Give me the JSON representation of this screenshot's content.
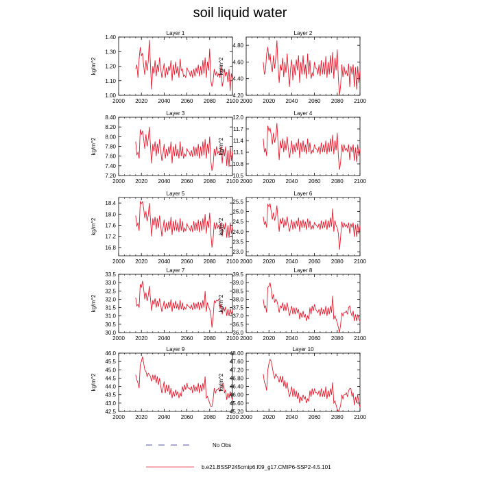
{
  "title": "soil liquid water",
  "legend": {
    "obs_label": "No Obs",
    "model_label": "b.e21.BSSP245cmip6.f09_g17.CMIP6-SSP2-4.5.101",
    "line_color": "#e8192c",
    "obs_color": "#1a1a8c"
  },
  "chart_data": [
    {
      "type": "line",
      "title": "Layer 1",
      "ylabel": "kg/m^2",
      "xlim": [
        2000,
        2100
      ],
      "ylim": [
        1.0,
        1.4
      ],
      "xticks": [
        "2000",
        "2020",
        "2040",
        "2060",
        "2080",
        "2100"
      ],
      "yticks": [
        "1.00",
        "1.10",
        "1.20",
        "1.30",
        "1.40"
      ],
      "x_start": 2015,
      "x_end": 2100,
      "values": [
        1.18,
        1.21,
        1.12,
        1.25,
        1.33,
        1.27,
        1.29,
        1.2,
        1.14,
        1.24,
        1.17,
        1.23,
        1.38,
        1.2,
        1.04,
        1.2,
        1.15,
        1.24,
        1.13,
        1.21,
        1.16,
        1.26,
        1.18,
        1.12,
        1.17,
        1.22,
        1.12,
        1.19,
        1.14,
        1.2,
        1.17,
        1.24,
        1.1,
        1.21,
        1.14,
        1.23,
        1.15,
        1.2,
        1.12,
        1.25,
        1.17,
        1.18,
        1.13,
        1.14,
        1.12,
        1.19,
        1.17,
        1.16,
        1.13,
        1.17,
        1.12,
        1.18,
        1.13,
        1.19,
        1.15,
        1.21,
        1.13,
        1.2,
        1.14,
        1.24,
        1.15,
        1.26,
        1.12,
        1.23,
        1.17,
        1.32,
        1.1,
        1.06,
        1.1,
        1.18,
        1.14,
        1.16,
        1.13,
        1.15,
        1.12,
        1.2,
        1.06,
        1.1,
        1.18,
        1.13,
        1.16,
        1.09,
        1.18,
        1.03,
        1.15,
        1.11
      ]
    },
    {
      "type": "line",
      "title": "Layer 2",
      "ylabel": "kg/m^2",
      "xlim": [
        2000,
        2100
      ],
      "ylim": [
        4.2,
        4.9
      ],
      "xticks": [
        "2000",
        "2020",
        "2040",
        "2060",
        "2080",
        "2100"
      ],
      "yticks": [
        "4.20",
        "4.40",
        "4.60",
        "4.80"
      ],
      "x_start": 2015,
      "x_end": 2100,
      "values": [
        4.6,
        4.45,
        4.5,
        4.7,
        4.78,
        4.62,
        4.7,
        4.55,
        4.48,
        4.68,
        4.52,
        4.65,
        4.86,
        4.55,
        4.35,
        4.57,
        4.5,
        4.65,
        4.42,
        4.6,
        4.47,
        4.7,
        4.5,
        4.3,
        4.52,
        4.63,
        4.38,
        4.57,
        4.44,
        4.63,
        4.5,
        4.68,
        4.35,
        4.6,
        4.45,
        4.68,
        4.45,
        4.57,
        4.4,
        4.7,
        4.45,
        4.62,
        4.4,
        4.47,
        4.43,
        4.6,
        4.53,
        4.52,
        4.45,
        4.57,
        4.43,
        4.62,
        4.45,
        4.6,
        4.45,
        4.67,
        4.41,
        4.6,
        4.45,
        4.68,
        4.47,
        4.72,
        4.4,
        4.65,
        4.5,
        4.75,
        4.4,
        4.2,
        4.32,
        4.57,
        4.42,
        4.55,
        4.45,
        4.5,
        4.43,
        4.58,
        4.3,
        4.55,
        4.45,
        4.57,
        4.3,
        4.54,
        4.27,
        4.55,
        4.35,
        4.5
      ]
    },
    {
      "type": "line",
      "title": "Layer 3",
      "ylabel": "kg/m^2",
      "xlim": [
        2000,
        2100
      ],
      "ylim": [
        7.2,
        8.4
      ],
      "xticks": [
        "2000",
        "2020",
        "2040",
        "2060",
        "2080",
        "2100"
      ],
      "yticks": [
        "7.20",
        "7.40",
        "7.60",
        "7.80",
        "8.00",
        "8.20",
        "8.40"
      ],
      "x_start": 2015,
      "x_end": 2100,
      "values": [
        7.9,
        7.62,
        7.68,
        7.55,
        8.15,
        8.05,
        8.12,
        7.95,
        7.75,
        8.05,
        7.8,
        7.95,
        8.2,
        7.8,
        7.45,
        7.85,
        7.7,
        7.9,
        7.6,
        7.85,
        7.65,
        7.95,
        7.7,
        7.5,
        7.65,
        7.85,
        7.55,
        7.75,
        7.6,
        7.8,
        7.65,
        7.9,
        7.45,
        7.8,
        7.6,
        7.85,
        7.6,
        7.75,
        7.55,
        7.9,
        7.6,
        7.8,
        7.55,
        7.65,
        7.6,
        7.75,
        7.7,
        7.68,
        7.6,
        7.72,
        7.58,
        7.8,
        7.6,
        7.78,
        7.6,
        7.85,
        7.55,
        7.8,
        7.6,
        7.9,
        7.62,
        7.95,
        7.55,
        7.85,
        7.65,
        8.0,
        7.5,
        7.3,
        7.4,
        7.75,
        7.6,
        7.8,
        7.65,
        7.7,
        7.62,
        7.8,
        7.45,
        7.75,
        7.6,
        7.8,
        7.4,
        7.72,
        7.38,
        7.8,
        7.5,
        7.7
      ]
    },
    {
      "type": "line",
      "title": "Layer 4",
      "ylabel": "kg/m^2",
      "xlim": [
        2000,
        2100
      ],
      "ylim": [
        10.5,
        12.0
      ],
      "xticks": [
        "2000",
        "2020",
        "2040",
        "2060",
        "2080",
        "2100"
      ],
      "yticks": [
        "10.5",
        "10.8",
        "11.1",
        "11.4",
        "11.7",
        "12.0"
      ],
      "x_start": 2015,
      "x_end": 2100,
      "values": [
        11.45,
        11.1,
        11.2,
        11.0,
        11.78,
        11.65,
        11.72,
        11.55,
        11.3,
        11.6,
        11.35,
        11.5,
        11.85,
        11.35,
        10.9,
        11.4,
        11.2,
        11.45,
        11.1,
        11.4,
        11.15,
        11.5,
        11.2,
        10.95,
        11.15,
        11.4,
        11.05,
        11.3,
        11.1,
        11.35,
        11.15,
        11.45,
        10.95,
        11.35,
        11.1,
        11.4,
        11.1,
        11.3,
        11.05,
        11.45,
        11.1,
        11.35,
        11.05,
        11.15,
        11.1,
        11.3,
        11.2,
        11.18,
        11.1,
        11.25,
        11.05,
        11.35,
        11.1,
        11.3,
        11.1,
        11.4,
        11.05,
        11.35,
        11.1,
        11.45,
        11.12,
        11.55,
        11.05,
        11.4,
        11.15,
        11.6,
        11.0,
        10.65,
        10.85,
        11.3,
        11.1,
        11.3,
        11.15,
        11.2,
        11.12,
        11.3,
        10.9,
        11.25,
        11.1,
        11.3,
        10.88,
        11.22,
        10.85,
        11.3,
        11.0,
        11.2
      ]
    },
    {
      "type": "line",
      "title": "Layer 5",
      "ylabel": "kg/m^2",
      "xlim": [
        2000,
        2100
      ],
      "ylim": [
        16.5,
        18.6
      ],
      "xticks": [
        "2000",
        "2020",
        "2040",
        "2060",
        "2080",
        "2100"
      ],
      "yticks": [
        "16.8",
        "17.2",
        "17.6",
        "18.0",
        "18.4"
      ],
      "x_start": 2015,
      "x_end": 2100,
      "values": [
        17.95,
        17.55,
        17.7,
        17.4,
        18.45,
        18.38,
        18.45,
        18.2,
        17.85,
        18.1,
        17.75,
        17.95,
        18.4,
        17.8,
        17.2,
        17.85,
        17.6,
        17.9,
        17.45,
        17.85,
        17.5,
        17.95,
        17.55,
        17.2,
        17.5,
        17.8,
        17.35,
        17.7,
        17.4,
        17.75,
        17.45,
        17.9,
        17.25,
        17.75,
        17.4,
        17.8,
        17.4,
        17.7,
        17.35,
        17.85,
        17.4,
        17.75,
        17.35,
        17.5,
        17.4,
        17.65,
        17.55,
        17.5,
        17.4,
        17.6,
        17.35,
        17.75,
        17.4,
        17.7,
        17.4,
        17.8,
        17.35,
        17.75,
        17.4,
        17.85,
        17.45,
        18.0,
        17.3,
        17.75,
        17.5,
        18.05,
        17.3,
        16.8,
        17.1,
        17.7,
        17.45,
        17.7,
        17.5,
        17.6,
        17.45,
        17.7,
        17.2,
        17.65,
        17.45,
        17.7,
        17.15,
        17.6,
        17.15,
        17.7,
        17.3,
        17.55
      ]
    },
    {
      "type": "line",
      "title": "Layer 6",
      "ylabel": "kg/m^2",
      "xlim": [
        2000,
        2100
      ],
      "ylim": [
        22.8,
        25.7
      ],
      "xticks": [
        "2000",
        "2020",
        "2040",
        "2060",
        "2080",
        "2100"
      ],
      "yticks": [
        "23.0",
        "23.5",
        "24.0",
        "24.5",
        "25.0",
        "25.5"
      ],
      "x_start": 2015,
      "x_end": 2100,
      "values": [
        24.75,
        24.35,
        24.5,
        24.2,
        25.35,
        25.25,
        25.4,
        25.0,
        24.6,
        24.95,
        24.55,
        24.8,
        25.3,
        24.6,
        24.0,
        24.65,
        24.4,
        24.7,
        24.2,
        24.6,
        24.3,
        24.75,
        24.35,
        24.0,
        24.3,
        24.6,
        24.1,
        24.5,
        24.15,
        24.55,
        24.25,
        24.7,
        24.0,
        24.55,
        24.2,
        24.6,
        24.2,
        24.5,
        24.1,
        24.65,
        24.2,
        24.55,
        24.1,
        24.3,
        24.15,
        24.45,
        24.35,
        24.3,
        24.2,
        24.4,
        24.1,
        24.55,
        24.15,
        24.5,
        24.2,
        24.6,
        24.1,
        24.55,
        24.2,
        24.7,
        24.25,
        25.15,
        24.0,
        24.55,
        24.3,
        24.2,
        23.9,
        23.1,
        23.75,
        24.5,
        24.2,
        24.45,
        24.25,
        24.35,
        24.2,
        24.45,
        23.9,
        24.4,
        24.2,
        24.45,
        23.75,
        24.35,
        23.75,
        24.4,
        23.9,
        24.3
      ]
    },
    {
      "type": "line",
      "title": "Layer 7",
      "ylabel": "kg/m^2",
      "xlim": [
        2000,
        2100
      ],
      "ylim": [
        30.0,
        33.5
      ],
      "xticks": [
        "2000",
        "2020",
        "2040",
        "2060",
        "2080",
        "2100"
      ],
      "yticks": [
        "30.0",
        "30.5",
        "31.0",
        "31.5",
        "32.0",
        "32.5",
        "33.0",
        "33.5"
      ],
      "x_start": 2015,
      "x_end": 2100,
      "values": [
        32.1,
        31.6,
        31.7,
        31.5,
        32.9,
        32.7,
        33.1,
        32.6,
        32.0,
        32.4,
        31.9,
        32.2,
        32.8,
        32.0,
        31.3,
        31.95,
        31.7,
        32.05,
        31.5,
        31.9,
        31.55,
        32.05,
        31.6,
        31.25,
        31.55,
        31.9,
        31.4,
        31.75,
        31.45,
        31.85,
        31.5,
        32.0,
        31.25,
        31.8,
        31.45,
        31.9,
        31.45,
        31.75,
        31.35,
        31.95,
        31.4,
        31.8,
        31.35,
        31.55,
        31.4,
        31.7,
        31.6,
        31.55,
        31.45,
        31.65,
        31.35,
        31.8,
        31.4,
        31.75,
        31.45,
        31.85,
        31.35,
        31.8,
        31.45,
        31.95,
        31.5,
        32.5,
        31.25,
        31.8,
        31.55,
        31.4,
        31.1,
        30.3,
        30.9,
        31.9,
        31.8,
        31.95,
        31.9,
        32.0,
        31.5,
        31.65,
        31.1,
        31.5,
        31.3,
        31.55,
        31.0,
        31.4,
        31.0,
        31.45,
        31.1,
        31.35
      ]
    },
    {
      "type": "line",
      "title": "Layer 8",
      "ylabel": "kg/m^2",
      "xlim": [
        2000,
        2100
      ],
      "ylim": [
        36.0,
        39.5
      ],
      "xticks": [
        "2000",
        "2020",
        "2040",
        "2060",
        "2080",
        "2100"
      ],
      "yticks": [
        "36.0",
        "36.5",
        "37.0",
        "37.5",
        "38.0",
        "38.5",
        "39.0",
        "39.5"
      ],
      "x_start": 2015,
      "x_end": 2100,
      "values": [
        38.0,
        37.5,
        37.6,
        37.2,
        38.7,
        38.8,
        39.0,
        38.6,
        38.0,
        38.3,
        37.8,
        38.0,
        37.9,
        37.6,
        37.2,
        37.6,
        37.5,
        37.8,
        37.3,
        37.7,
        37.3,
        37.8,
        37.4,
        37.0,
        37.3,
        37.6,
        37.1,
        37.5,
        37.1,
        37.5,
        37.2,
        37.4,
        36.8,
        37.2,
        36.9,
        37.3,
        36.9,
        37.1,
        36.7,
        37.0,
        36.8,
        37.5,
        37.1,
        37.6,
        37.3,
        37.7,
        37.4,
        37.3,
        37.2,
        37.4,
        37.0,
        37.5,
        37.1,
        37.4,
        37.1,
        37.6,
        37.0,
        37.5,
        37.1,
        37.6,
        37.2,
        38.2,
        36.8,
        37.0,
        36.8,
        36.6,
        36.3,
        36.0,
        36.5,
        37.2,
        37.0,
        37.2,
        37.2,
        37.3,
        37.1,
        37.5,
        37.6,
        37.2,
        37.0,
        37.3,
        36.7,
        37.1,
        36.7,
        37.1,
        36.8,
        36.7
      ]
    },
    {
      "type": "line",
      "title": "Layer 9",
      "ylabel": "kg/m^2",
      "xlim": [
        2000,
        2100
      ],
      "ylim": [
        42.5,
        46.0
      ],
      "xticks": [
        "2000",
        "2020",
        "2040",
        "2060",
        "2080",
        "2100"
      ],
      "yticks": [
        "42.5",
        "43.0",
        "43.5",
        "44.0",
        "44.5",
        "45.0",
        "45.5",
        "46.0"
      ],
      "x_start": 2015,
      "x_end": 2100,
      "values": [
        44.7,
        44.4,
        44.2,
        43.9,
        45.3,
        45.5,
        45.8,
        45.4,
        45.0,
        44.9,
        44.6,
        44.8,
        44.7,
        44.6,
        44.3,
        44.7,
        44.4,
        44.7,
        44.2,
        44.6,
        44.1,
        44.5,
        44.0,
        43.6,
        43.9,
        44.3,
        43.6,
        44.1,
        43.7,
        44.1,
        43.5,
        43.9,
        43.3,
        43.7,
        43.4,
        43.8,
        43.5,
        43.7,
        43.3,
        43.6,
        43.4,
        44.0,
        43.7,
        44.1,
        43.8,
        44.2,
        43.9,
        43.9,
        43.8,
        44.0,
        43.6,
        44.1,
        43.7,
        44.0,
        43.7,
        44.2,
        43.6,
        44.1,
        43.7,
        44.2,
        43.8,
        44.6,
        43.3,
        43.4,
        43.2,
        43.0,
        42.8,
        42.8,
        43.2,
        43.9,
        43.6,
        43.8,
        43.8,
        43.9,
        43.7,
        44.0,
        44.1,
        44.2,
        43.6,
        43.8,
        43.2,
        43.6,
        43.3,
        43.7,
        43.4,
        43.2
      ]
    },
    {
      "type": "line",
      "title": "Layer 10",
      "ylabel": "kg/m^2",
      "xlim": [
        2000,
        2100
      ],
      "ylim": [
        45.2,
        48.0
      ],
      "xticks": [
        "2000",
        "2020",
        "2040",
        "2060",
        "2080",
        "2100"
      ],
      "yticks": [
        "45.20",
        "45.60",
        "46.00",
        "46.40",
        "46.80",
        "47.20",
        "47.60",
        "48.00"
      ],
      "x_start": 2015,
      "x_end": 2100,
      "values": [
        47.0,
        46.6,
        46.5,
        46.2,
        47.2,
        47.5,
        47.7,
        47.6,
        47.3,
        47.0,
        46.8,
        47.0,
        46.9,
        46.8,
        46.6,
        46.9,
        46.6,
        46.9,
        46.4,
        46.7,
        46.3,
        46.6,
        46.2,
        45.9,
        46.1,
        46.4,
        45.9,
        46.3,
        45.9,
        46.2,
        45.8,
        46.1,
        45.6,
        45.9,
        45.7,
        46.0,
        45.8,
        45.9,
        45.6,
        45.8,
        45.7,
        46.2,
        45.9,
        46.3,
        46.0,
        46.3,
        46.1,
        46.1,
        46.0,
        46.2,
        45.9,
        46.3,
        45.9,
        46.2,
        45.9,
        46.4,
        45.8,
        46.2,
        45.9,
        46.3,
        46.0,
        46.6,
        45.6,
        45.7,
        45.5,
        45.3,
        45.2,
        45.3,
        45.5,
        46.0,
        45.8,
        46.0,
        46.0,
        46.1,
        45.9,
        46.2,
        46.3,
        46.3,
        45.9,
        46.1,
        45.5,
        45.9,
        45.6,
        46.0,
        45.6,
        45.4
      ]
    }
  ]
}
